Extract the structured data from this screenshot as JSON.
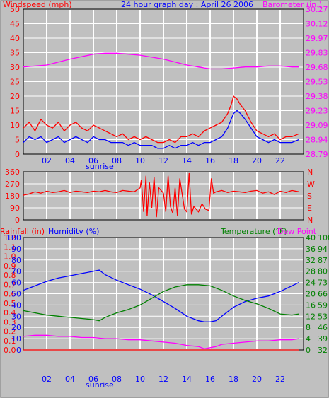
{
  "chart_data": [
    {
      "type": "line",
      "title": "24 hour graph day : April 26 2006",
      "ylabel_left": "Windspeed (mph)",
      "ylabel_right": "Barometer (in.)",
      "x_ticks": [
        "02",
        "04",
        "06",
        "08",
        "10",
        "12",
        "14",
        "16",
        "18",
        "20",
        "22"
      ],
      "x_sub_label": "sunrise",
      "xlim": [
        0,
        24
      ],
      "ylim_left": [
        0,
        50
      ],
      "yticks_left": [
        "0",
        "5",
        "10",
        "15",
        "20",
        "25",
        "30",
        "35",
        "40",
        "45",
        "50"
      ],
      "ylim_right": [
        28.79,
        30.27
      ],
      "yticks_right": [
        "28.79",
        "28.94",
        "29.09",
        "29.23",
        "29.38",
        "29.53",
        "29.68",
        "29.83",
        "29.97",
        "30.12",
        "30.27"
      ],
      "grid": true,
      "colors": {
        "gust": "#ff0000",
        "speed": "#0000ff",
        "barometer": "#ff00ff"
      },
      "series": [
        {
          "axis": "right",
          "color": "#ff00ff",
          "x": [
            0,
            2,
            4,
            6,
            7,
            8,
            9,
            10,
            11,
            12,
            13,
            14,
            15,
            16,
            17,
            18,
            19,
            20,
            21,
            22,
            23,
            23.6
          ],
          "values": [
            29.68,
            29.7,
            29.76,
            29.81,
            29.82,
            29.82,
            29.81,
            29.8,
            29.78,
            29.76,
            29.73,
            29.7,
            29.68,
            29.66,
            29.66,
            29.67,
            29.68,
            29.68,
            29.69,
            29.69,
            29.68,
            29.68
          ]
        },
        {
          "axis": "left",
          "color": "#0000ff",
          "x": [
            0,
            0.5,
            1,
            1.5,
            2,
            2.5,
            3,
            3.5,
            4,
            4.5,
            5,
            5.5,
            6,
            6.5,
            7,
            7.5,
            8,
            8.5,
            9,
            9.5,
            10,
            10.5,
            11,
            11.5,
            12,
            12.5,
            13,
            13.5,
            14,
            14.5,
            15,
            15.5,
            16,
            16.5,
            17,
            17.5,
            17.8,
            18,
            18.3,
            18.6,
            19,
            19.5,
            20,
            20.5,
            21,
            21.5,
            22,
            22.5,
            23,
            23.6
          ],
          "values": [
            4,
            6,
            5,
            6,
            4,
            5,
            6,
            4,
            5,
            6,
            5,
            4,
            6,
            5,
            5,
            4,
            4,
            4,
            3,
            4,
            3,
            3,
            3,
            2,
            2,
            3,
            2,
            3,
            3,
            4,
            3,
            4,
            4,
            5,
            6,
            9,
            12,
            14,
            15,
            14,
            12,
            9,
            6,
            5,
            4,
            5,
            4,
            4,
            4,
            5
          ]
        },
        {
          "axis": "left",
          "color": "#ff0000",
          "x": [
            0,
            0.5,
            1,
            1.5,
            2,
            2.5,
            3,
            3.5,
            4,
            4.5,
            5,
            5.5,
            6,
            6.5,
            7,
            7.5,
            8,
            8.5,
            9,
            9.5,
            10,
            10.5,
            11,
            11.5,
            12,
            12.5,
            13,
            13.5,
            14,
            14.5,
            15,
            15.5,
            16,
            16.5,
            17,
            17.5,
            17.8,
            18,
            18.3,
            18.6,
            19,
            19.5,
            20,
            20.5,
            21,
            21.5,
            22,
            22.5,
            23,
            23.6
          ],
          "values": [
            9,
            11,
            8,
            12,
            10,
            9,
            11,
            8,
            10,
            11,
            9,
            8,
            10,
            9,
            8,
            7,
            6,
            7,
            5,
            6,
            5,
            6,
            5,
            4,
            4,
            5,
            4,
            6,
            6,
            7,
            6,
            8,
            9,
            10,
            11,
            14,
            17,
            20,
            19,
            17,
            15,
            11,
            8,
            7,
            6,
            7,
            5,
            6,
            6,
            7
          ]
        }
      ]
    },
    {
      "type": "line",
      "title": "",
      "ylabel_left": "",
      "ylabel_right": "",
      "ylim": [
        0,
        360
      ],
      "yticks_left": [
        "0",
        "90",
        "180",
        "270",
        "360"
      ],
      "yticks_right": [
        "N",
        "E",
        "S",
        "W",
        "N"
      ],
      "grid": true,
      "series": [
        {
          "color": "#ff0000",
          "x": [
            0,
            0.5,
            1,
            1.5,
            2,
            2.5,
            3,
            3.5,
            4,
            4.5,
            5,
            5.5,
            6,
            6.5,
            7,
            7.5,
            8,
            8.5,
            9,
            9.5,
            10,
            10.1,
            10.3,
            10.5,
            10.6,
            10.8,
            11,
            11.2,
            11.4,
            11.6,
            12,
            12.2,
            12.4,
            12.6,
            12.8,
            13,
            13.2,
            13.4,
            13.8,
            14,
            14.2,
            14.4,
            14.6,
            15,
            15.3,
            15.6,
            15.9,
            16.1,
            16.3,
            16.5,
            17,
            17.5,
            18,
            18.5,
            19,
            19.5,
            20,
            20.5,
            21,
            21.5,
            22,
            22.5,
            23,
            23.6
          ],
          "values": [
            185,
            195,
            210,
            200,
            215,
            205,
            210,
            220,
            205,
            215,
            210,
            205,
            215,
            210,
            220,
            210,
            205,
            220,
            215,
            210,
            240,
            300,
            60,
            330,
            30,
            280,
            90,
            320,
            20,
            240,
            200,
            60,
            330,
            100,
            50,
            240,
            30,
            310,
            80,
            60,
            350,
            40,
            100,
            60,
            120,
            80,
            70,
            310,
            200,
            210,
            220,
            205,
            215,
            210,
            205,
            215,
            220,
            200,
            210,
            190,
            215,
            205,
            220,
            210
          ]
        }
      ]
    },
    {
      "type": "line",
      "title": "",
      "ylabel_left_1": "Rainfall (in)",
      "ylabel_left_2": "Humidity (%)",
      "ylabel_right_1": "Temperature (°F)",
      "ylabel_right_2": "Dew Point",
      "x_ticks": [
        "02",
        "04",
        "06",
        "08",
        "10",
        "12",
        "14",
        "16",
        "18",
        "20",
        "22"
      ],
      "x_sub_label": "sunrise",
      "ylim_humidity": [
        0,
        100
      ],
      "yticks_rain": [
        "0.0",
        "0.1",
        "0.2",
        "0.3",
        "0.4",
        "0.5",
        "0.6",
        "0.7",
        "0.8",
        "0.9",
        "1.0",
        "1.1",
        "1.2"
      ],
      "yticks_humidity": [
        "0",
        "10",
        "20",
        "30",
        "40",
        "50",
        "60",
        "70",
        "80",
        "90",
        "100"
      ],
      "ylim_temp": [
        32,
        40
      ],
      "yticks_temp": [
        "0",
        "4",
        "8",
        "12",
        "16",
        "20",
        "24",
        "28",
        "32",
        "36",
        "40"
      ],
      "yticks_dew": [
        "32",
        "39",
        "46",
        "53",
        "59",
        "66",
        "73",
        "80",
        "87",
        "94",
        "100"
      ],
      "grid": true,
      "series": [
        {
          "color": "#0000ff",
          "x": [
            0,
            1,
            2,
            3,
            4,
            5,
            6,
            6.5,
            7,
            8,
            9,
            10,
            11,
            12,
            13,
            14,
            15,
            15.5,
            16,
            16.5,
            17,
            18,
            19,
            20,
            21,
            22,
            23,
            23.6
          ],
          "values": [
            53,
            57,
            61,
            64,
            66,
            68,
            70,
            71,
            67,
            62,
            58,
            54,
            49,
            43,
            37,
            30,
            26,
            25,
            25,
            26,
            30,
            38,
            43,
            46,
            48,
            52,
            57,
            60
          ]
        },
        {
          "color": "#008000",
          "x": [
            0,
            1,
            2,
            3,
            4,
            5,
            6,
            6.5,
            7,
            8,
            9,
            10,
            11,
            12,
            13,
            14,
            15,
            16,
            17,
            18,
            19,
            20,
            21,
            22,
            23,
            23.6
          ],
          "values": [
            35,
            33,
            31,
            30,
            29,
            28,
            27,
            26,
            29,
            33,
            36,
            40,
            46,
            52,
            56,
            58,
            58,
            57,
            53,
            48,
            44,
            41,
            37,
            32,
            31,
            32
          ]
        },
        {
          "color": "#ff00ff",
          "x": [
            0,
            1,
            2,
            3,
            4,
            5,
            6,
            7,
            8,
            9,
            10,
            11,
            12,
            13,
            14,
            15,
            15.5,
            16,
            16.5,
            17,
            18,
            19,
            20,
            21,
            22,
            23,
            23.6
          ],
          "values": [
            12,
            13,
            13,
            12,
            12,
            11,
            11,
            10,
            10,
            9,
            9,
            8,
            7,
            6,
            4,
            3,
            1,
            2,
            3,
            5,
            6,
            7,
            8,
            8,
            9,
            9,
            10
          ]
        },
        {
          "color": "#ff0000",
          "x": [
            0,
            23.6
          ],
          "values": [
            0,
            0
          ]
        }
      ]
    }
  ]
}
